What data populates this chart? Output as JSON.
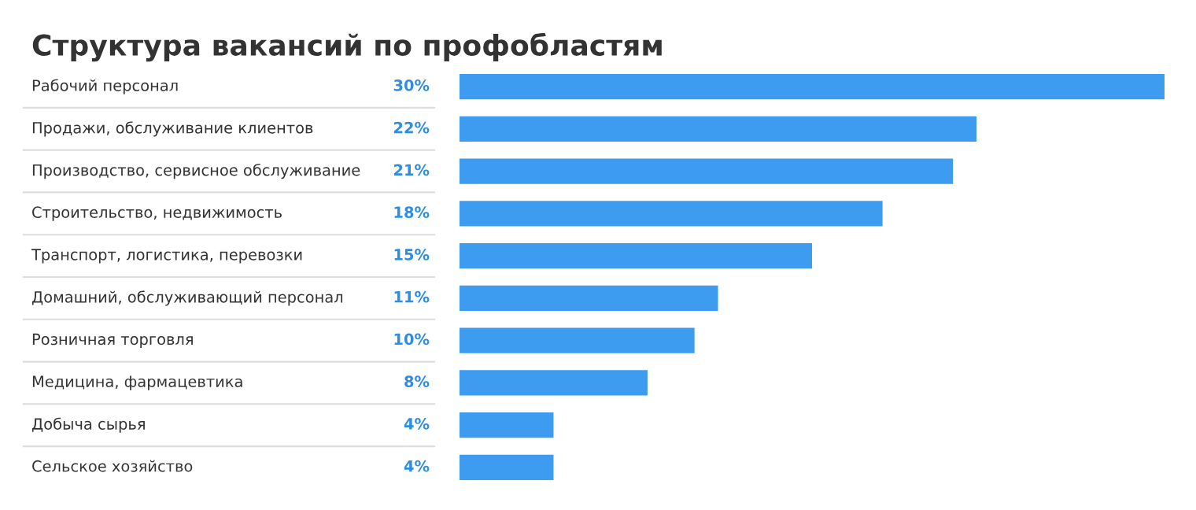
{
  "chart_data": {
    "type": "bar",
    "orientation": "horizontal",
    "title": "Структура вакансий по профобластям",
    "categories": [
      "Рабочий персонал",
      "Продажи, обслуживание клиентов",
      "Производство, сервисное обслуживание",
      "Строительство, недвижимость",
      "Транспорт, логистика, перевозки",
      "Домашний, обслуживающий персонал",
      "Розничная торговля",
      "Медицина, фармацевтика",
      "Добыча сырья",
      "Сельское хозяйство"
    ],
    "values": [
      30,
      22,
      21,
      18,
      15,
      11,
      10,
      8,
      4,
      4
    ],
    "value_labels": [
      "30%",
      "22%",
      "21%",
      "18%",
      "15%",
      "11%",
      "10%",
      "8%",
      "4%",
      "4%"
    ],
    "color": "#3d9bf0"
  }
}
